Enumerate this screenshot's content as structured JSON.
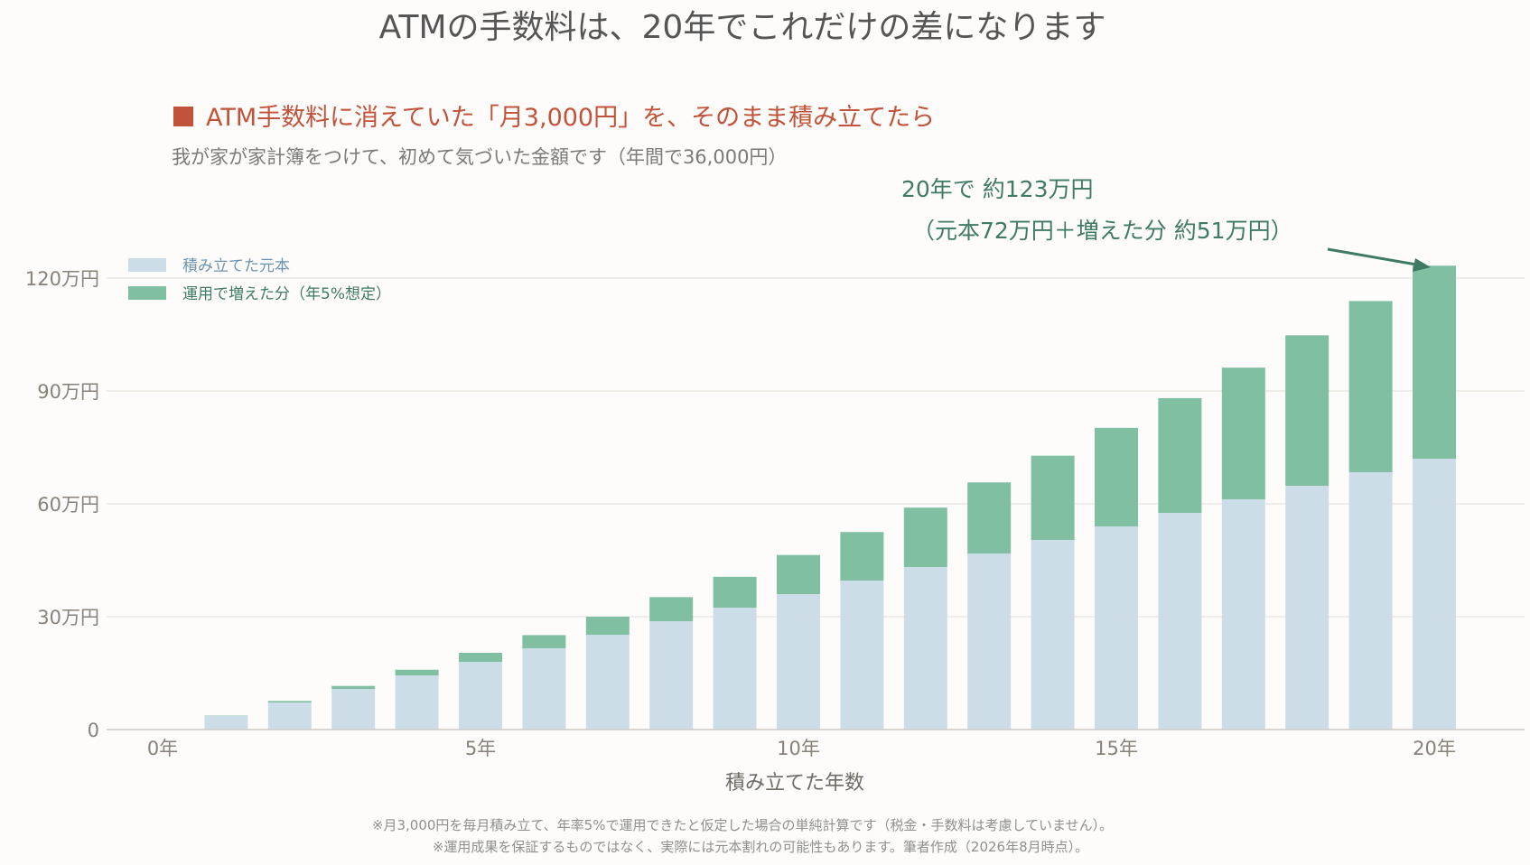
{
  "title": "ATMの手数料は、20年でこれだけの差になります",
  "subtitle": "ATM手数料に消えていた「月3,000円」を、そのまま積み立てたら",
  "description": "我が家が家計簿をつけて、初めて気づいた金額です（年間で36,000円）",
  "annotation": {
    "line1": "20年で 約123万円",
    "line2": "（元本72万円＋増えた分 約51万円）"
  },
  "footnotes": [
    "※月3,000円を毎月積み立て、年率5%で運用できたと仮定した場合の単純計算です（税金・手数料は考慮していません）。",
    "※運用成果を保証するものではなく、実際には元本割れの可能性もあります。筆者作成（2026年8月時点）。"
  ],
  "colors": {
    "principal": "#cddde8",
    "growth": "#80bfa2",
    "subtitle": "#c0533a",
    "annotation": "#3f7a62",
    "principal_legend_text": "#6b93b0",
    "growth_legend_text": "#3f7a62"
  },
  "chart_data": {
    "type": "bar",
    "stacked": true,
    "xlabel": "積み立てた年数",
    "ylabel": "",
    "x_ticks": [
      {
        "year": 0,
        "label": "0年"
      },
      {
        "year": 5,
        "label": "5年"
      },
      {
        "year": 10,
        "label": "10年"
      },
      {
        "year": 15,
        "label": "15年"
      },
      {
        "year": 20,
        "label": "20年"
      }
    ],
    "y_ticks": [
      {
        "value": 0,
        "label": "0"
      },
      {
        "value": 30,
        "label": "30万円"
      },
      {
        "value": 60,
        "label": "60万円"
      },
      {
        "value": 90,
        "label": "90万円"
      },
      {
        "value": 120,
        "label": "120万円"
      }
    ],
    "ylim": [
      0,
      120
    ],
    "grid": true,
    "legend_position": "top-left",
    "years": [
      0,
      1,
      2,
      3,
      4,
      5,
      6,
      7,
      8,
      9,
      10,
      11,
      12,
      13,
      14,
      15,
      16,
      17,
      18,
      19,
      20
    ],
    "series": [
      {
        "name": "積み立てた元本",
        "values": [
          0,
          3.6,
          7.2,
          10.8,
          14.4,
          18.0,
          21.6,
          25.2,
          28.8,
          32.4,
          36.0,
          39.6,
          43.2,
          46.8,
          50.4,
          54.0,
          57.6,
          61.2,
          64.8,
          68.4,
          72.0
        ]
      },
      {
        "name": "運用で増えた分（年5%想定）",
        "values": [
          0,
          0.1,
          0.4,
          0.8,
          1.5,
          2.4,
          3.5,
          4.8,
          6.4,
          8.2,
          10.4,
          12.9,
          15.8,
          18.9,
          22.4,
          26.2,
          30.5,
          35.0,
          40.0,
          45.5,
          51.3
        ]
      }
    ]
  }
}
